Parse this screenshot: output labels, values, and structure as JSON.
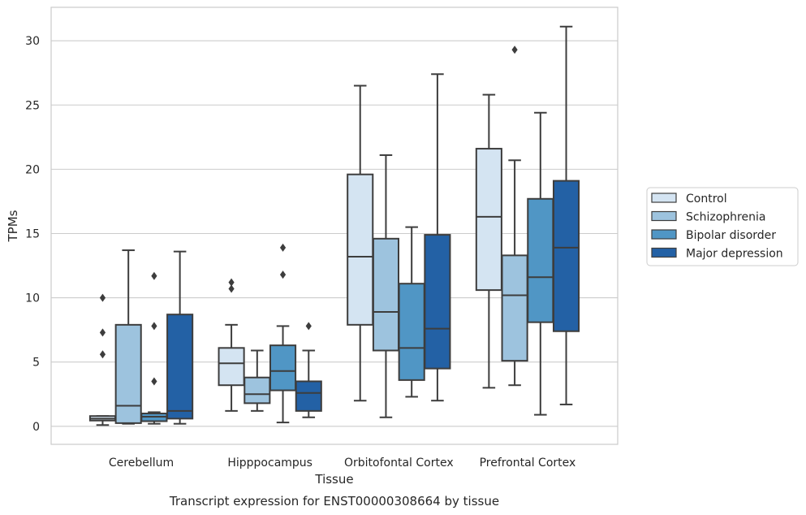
{
  "chart_data": {
    "type": "box",
    "caption": "Transcript expression for ENST00000308664 by tissue",
    "xlabel": "Tissue",
    "ylabel": "TPMs",
    "ylim": [
      -1.4,
      32.6
    ],
    "yticks": [
      0,
      5,
      10,
      15,
      20,
      25,
      30
    ],
    "grid": "horizontal",
    "legend_position": "right",
    "categories": [
      "Cerebellum",
      "Hipppocampus",
      "Orbitofontal Cortex",
      "Prefrontal Cortex"
    ],
    "series": [
      {
        "name": "Control",
        "color": "#d4e4f2",
        "boxes": [
          {
            "whislo": 0.1,
            "q1": 0.45,
            "med": 0.6,
            "q3": 0.8,
            "whishi": 0.8,
            "fliers": [
              5.6,
              7.3,
              10.0
            ]
          },
          {
            "whislo": 1.2,
            "q1": 3.2,
            "med": 4.9,
            "q3": 6.1,
            "whishi": 7.9,
            "fliers": [
              10.7,
              11.2
            ]
          },
          {
            "whislo": 2.0,
            "q1": 7.9,
            "med": 13.2,
            "q3": 19.6,
            "whishi": 26.5,
            "fliers": []
          },
          {
            "whislo": 3.0,
            "q1": 10.6,
            "med": 16.3,
            "q3": 21.6,
            "whishi": 25.8,
            "fliers": []
          }
        ]
      },
      {
        "name": "Schizophrenia",
        "color": "#9dc3de",
        "boxes": [
          {
            "whislo": 0.2,
            "q1": 0.25,
            "med": 1.6,
            "q3": 7.9,
            "whishi": 13.7,
            "fliers": []
          },
          {
            "whislo": 1.2,
            "q1": 1.8,
            "med": 2.5,
            "q3": 3.8,
            "whishi": 5.9,
            "fliers": []
          },
          {
            "whislo": 0.7,
            "q1": 5.9,
            "med": 8.9,
            "q3": 14.6,
            "whishi": 21.1,
            "fliers": []
          },
          {
            "whislo": 3.2,
            "q1": 5.1,
            "med": 10.2,
            "q3": 13.3,
            "whishi": 20.7,
            "fliers": [
              29.3
            ]
          }
        ]
      },
      {
        "name": "Bipolar disorder",
        "color": "#5096c5",
        "boxes": [
          {
            "whislo": 0.2,
            "q1": 0.4,
            "med": 0.75,
            "q3": 1.0,
            "whishi": 1.1,
            "fliers": [
              3.5,
              7.8,
              11.7
            ]
          },
          {
            "whislo": 0.3,
            "q1": 2.8,
            "med": 4.3,
            "q3": 6.3,
            "whishi": 7.8,
            "fliers": [
              11.8,
              13.9
            ]
          },
          {
            "whislo": 2.3,
            "q1": 3.6,
            "med": 6.1,
            "q3": 11.1,
            "whishi": 15.5,
            "fliers": []
          },
          {
            "whislo": 0.9,
            "q1": 8.1,
            "med": 11.6,
            "q3": 17.7,
            "whishi": 24.4,
            "fliers": []
          }
        ]
      },
      {
        "name": "Major depression",
        "color": "#2361a5",
        "boxes": [
          {
            "whislo": 0.2,
            "q1": 0.6,
            "med": 1.2,
            "q3": 8.7,
            "whishi": 13.6,
            "fliers": []
          },
          {
            "whislo": 0.7,
            "q1": 1.2,
            "med": 2.6,
            "q3": 3.5,
            "whishi": 5.9,
            "fliers": [
              7.8
            ]
          },
          {
            "whislo": 2.0,
            "q1": 4.5,
            "med": 7.6,
            "q3": 14.9,
            "whishi": 27.4,
            "fliers": []
          },
          {
            "whislo": 1.7,
            "q1": 7.4,
            "med": 13.9,
            "q3": 19.1,
            "whishi": 31.1,
            "fliers": []
          }
        ]
      }
    ]
  }
}
